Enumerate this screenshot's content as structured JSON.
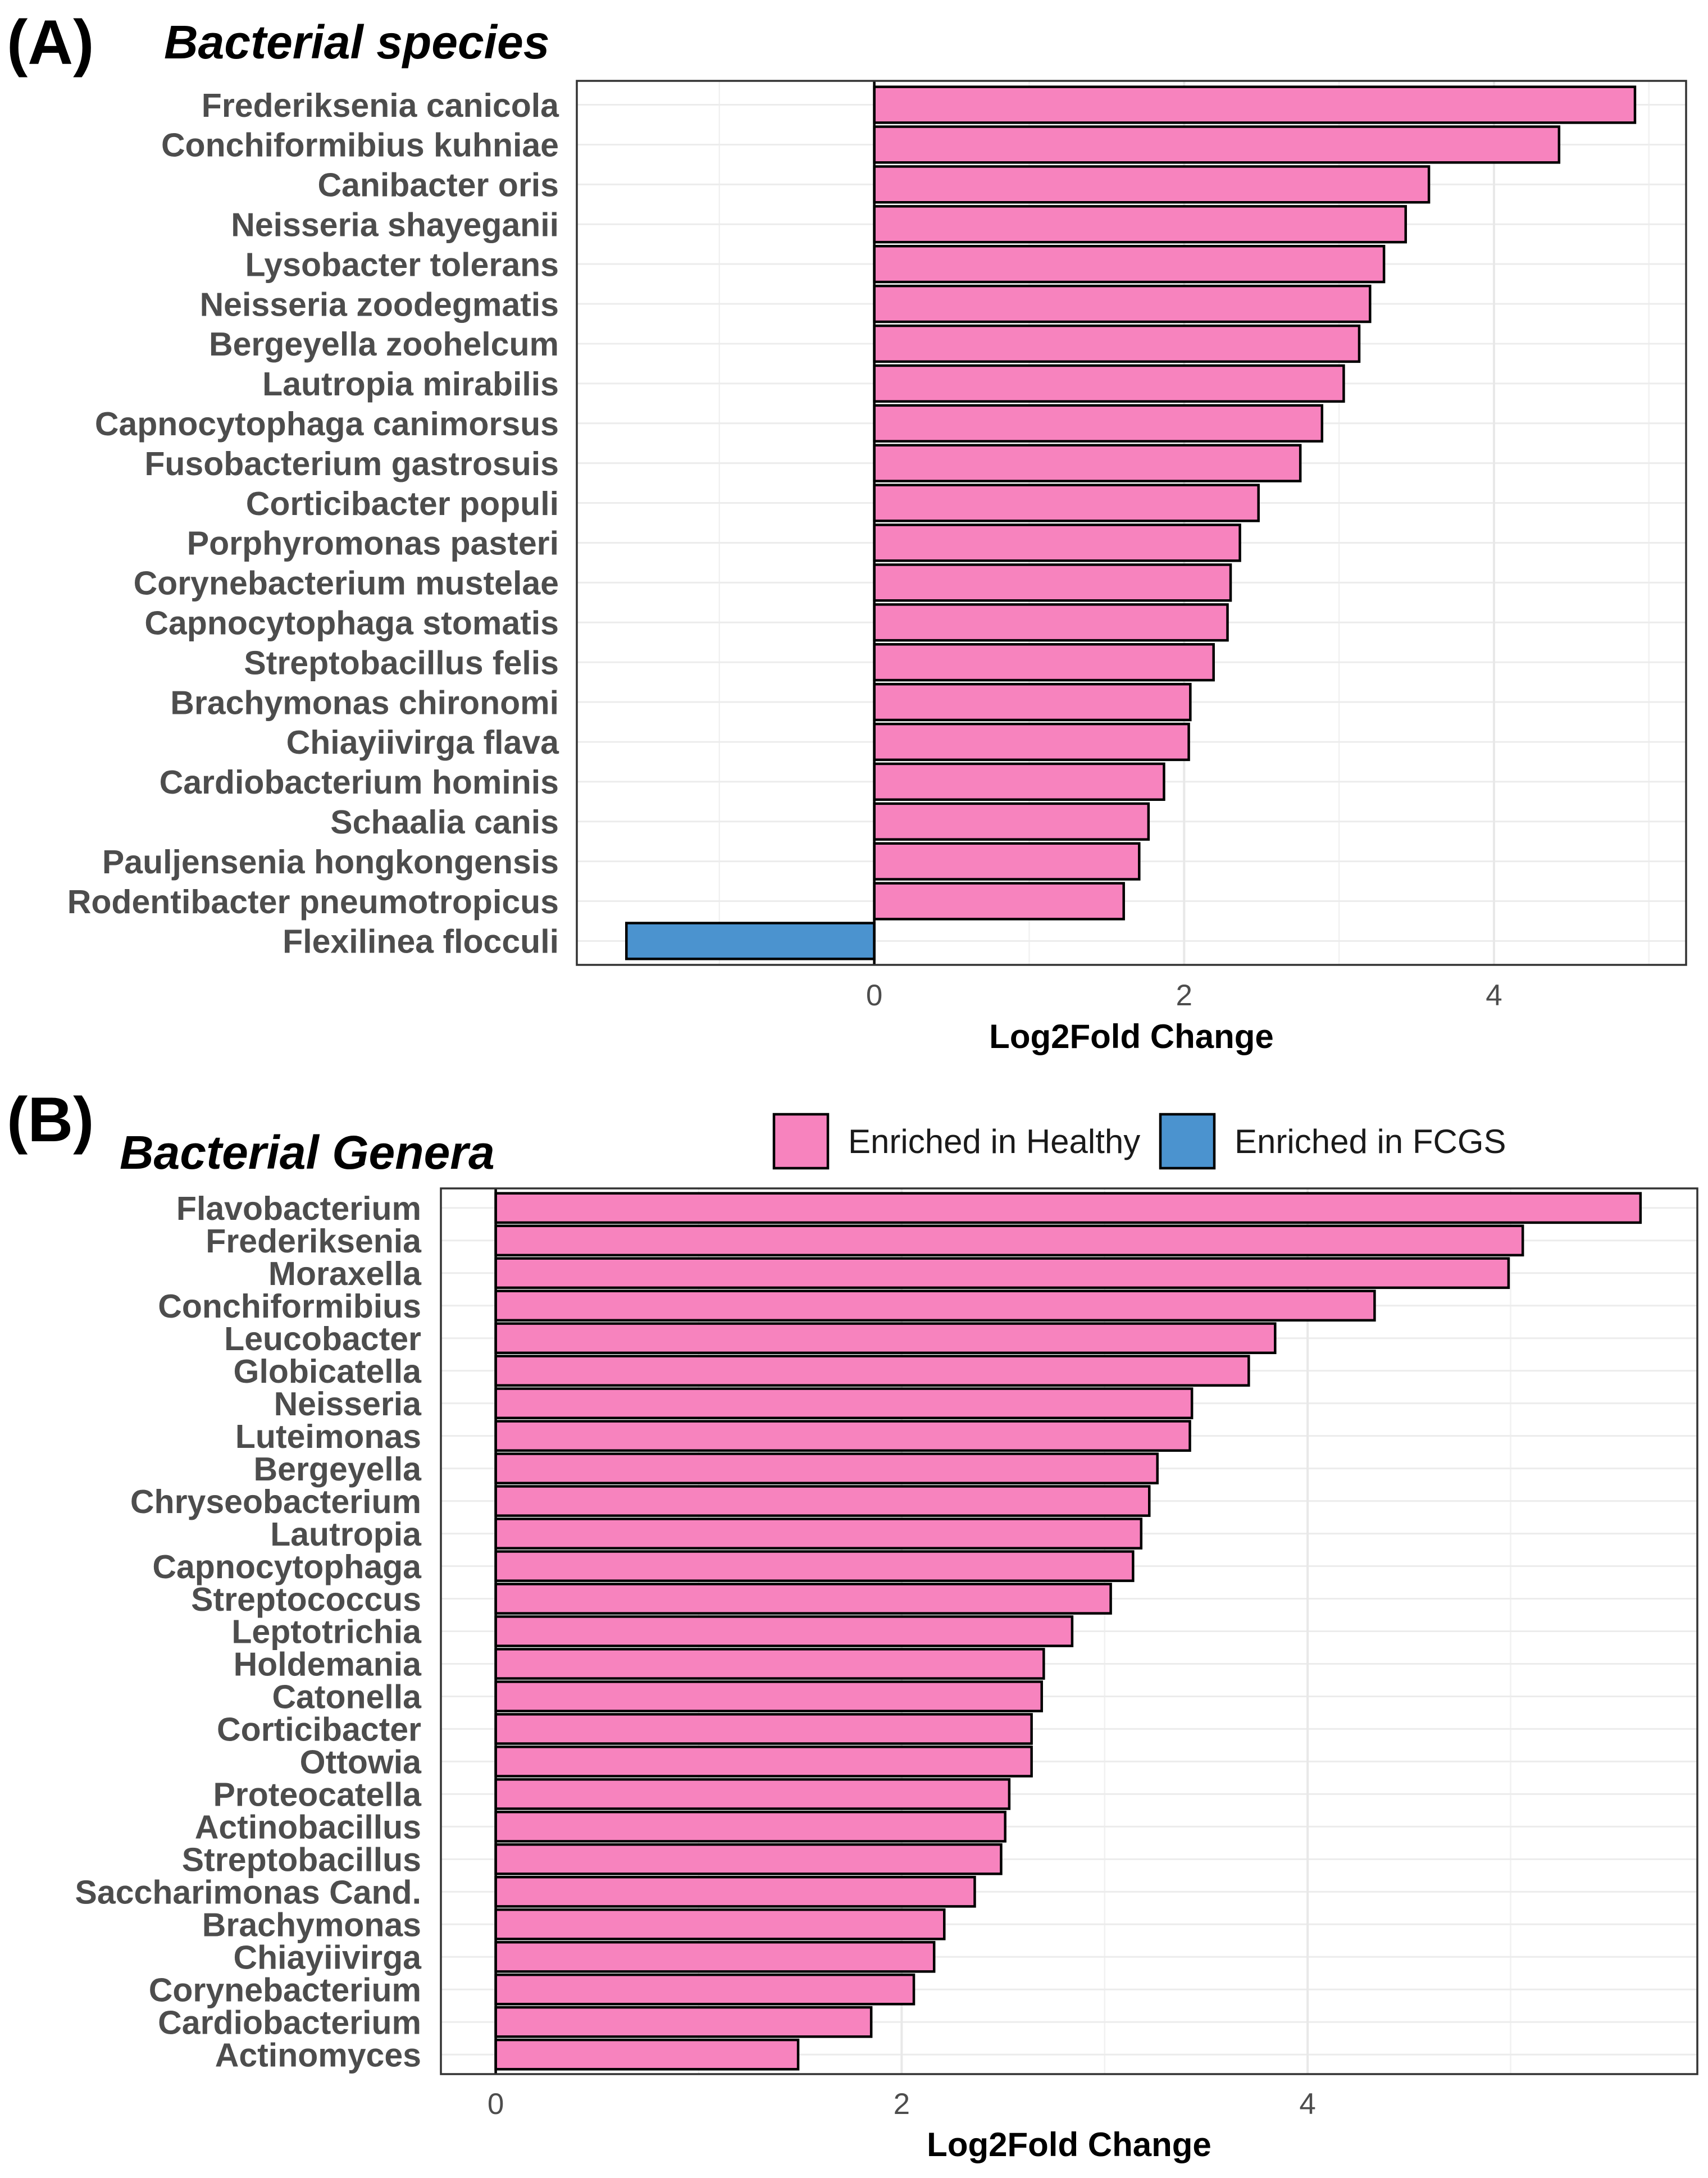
{
  "chart_data": [
    {
      "type": "bar",
      "panel_label": "(A)",
      "title": "Bacterial species",
      "xlabel": "Log2Fold Change",
      "ylabel": "",
      "xlim": [
        -1.92,
        5.24
      ],
      "xticks": [
        0,
        2,
        4
      ],
      "minor_xticks": [
        -1,
        1,
        3,
        5
      ],
      "grid": true,
      "categories": [
        "Frederiksenia canicola",
        "Conchiformibius kuhniae",
        "Canibacter oris",
        "Neisseria shayeganii",
        "Lysobacter tolerans",
        "Neisseria zoodegmatis",
        "Bergeyella zoohelcum",
        "Lautropia mirabilis",
        "Capnocytophaga canimorsus",
        "Fusobacterium gastrosuis",
        "Corticibacter populi",
        "Porphyromonas pasteri",
        "Corynebacterium mustelae",
        "Capnocytophaga stomatis",
        "Streptobacillus felis",
        "Brachymonas chironomi",
        "Chiayiivirga flava",
        "Cardiobacterium hominis",
        "Schaalia canis",
        "Pauljensenia hongkongensis",
        "Rodentibacter pneumotropicus",
        "Flexilinea flocculi"
      ],
      "values": [
        4.91,
        4.42,
        3.58,
        3.43,
        3.29,
        3.2,
        3.13,
        3.03,
        2.89,
        2.75,
        2.48,
        2.36,
        2.3,
        2.28,
        2.19,
        2.04,
        2.03,
        1.87,
        1.77,
        1.71,
        1.61,
        -1.6
      ]
    },
    {
      "type": "bar",
      "panel_label": "(B)",
      "title": "Bacterial Genera",
      "xlabel": "Log2Fold Change",
      "ylabel": "",
      "xlim": [
        -0.27,
        5.92
      ],
      "xticks": [
        0,
        2,
        4
      ],
      "minor_xticks": [
        1,
        3,
        5
      ],
      "grid": true,
      "categories": [
        "Flavobacterium",
        "Frederiksenia",
        "Moraxella",
        "Conchiformibius",
        "Leucobacter",
        "Globicatella",
        "Neisseria",
        "Luteimonas",
        "Bergeyella",
        "Chryseobacterium",
        "Lautropia",
        "Capnocytophaga",
        "Streptococcus",
        "Leptotrichia",
        "Holdemania",
        "Catonella",
        "Corticibacter",
        "Ottowia",
        "Proteocatella",
        "Actinobacillus",
        "Streptobacillus",
        "Saccharimonas Cand.",
        "Brachymonas",
        "Chiayiivirga",
        "Corynebacterium",
        "Cardiobacterium",
        "Actinomyces"
      ],
      "values": [
        5.64,
        5.06,
        4.99,
        4.33,
        3.84,
        3.71,
        3.43,
        3.42,
        3.26,
        3.22,
        3.18,
        3.14,
        3.03,
        2.84,
        2.7,
        2.69,
        2.64,
        2.64,
        2.53,
        2.51,
        2.49,
        2.36,
        2.21,
        2.16,
        2.06,
        1.85,
        1.49
      ]
    }
  ],
  "legend": {
    "items": [
      {
        "label": "Enriched in Healthy",
        "color": "#F783BE"
      },
      {
        "label": "Enriched in FCGS",
        "color": "#4B93CF"
      }
    ]
  }
}
